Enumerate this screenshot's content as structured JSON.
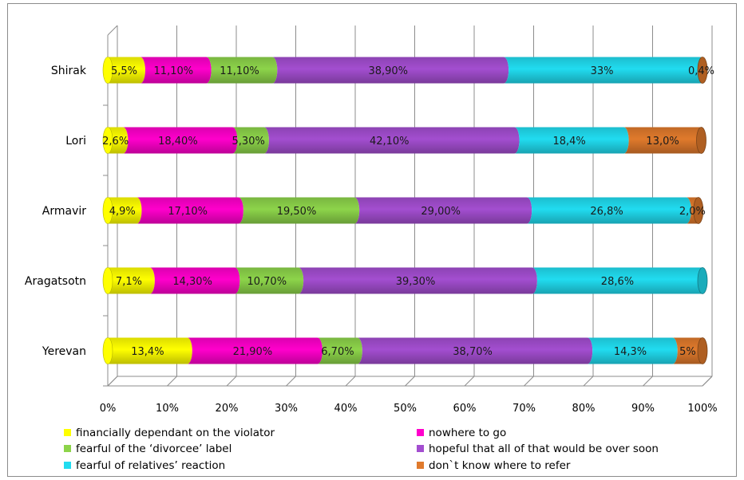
{
  "chart_data": {
    "type": "bar",
    "orientation": "horizontal",
    "stacked": true,
    "percent": true,
    "categories": [
      "Yerevan",
      "Aragatsotn",
      "Armavir",
      "Lori",
      "Shirak"
    ],
    "xlim": [
      0,
      100
    ],
    "xticks": [
      "0%",
      "10%",
      "20%",
      "30%",
      "40%",
      "50%",
      "60%",
      "70%",
      "80%",
      "90%",
      "100%"
    ],
    "grid": true,
    "legend_position": "bottom",
    "series": [
      {
        "name": "financially dependant on the violator",
        "color": "#ffff00",
        "values": [
          13.4,
          7.1,
          4.9,
          2.6,
          5.5
        ],
        "labels": [
          "13,4%",
          "7,1%",
          "4,9%",
          "2,6%",
          "5,5%"
        ]
      },
      {
        "name": "nowhere to go",
        "color": "#ff00cc",
        "values": [
          21.9,
          14.3,
          17.1,
          18.4,
          11.1
        ],
        "labels": [
          "21,90%",
          "14,30%",
          "17,10%",
          "18,40%",
          "11,10%"
        ]
      },
      {
        "name": "fearful of the ‘divorcee’ label",
        "color": "#8dd44a",
        "values": [
          6.7,
          10.7,
          19.5,
          5.3,
          11.1
        ],
        "labels": [
          "6,70%",
          "10,70%",
          "19,50%",
          "5,30%",
          "11,10%"
        ]
      },
      {
        "name": "hopeful that all of that would be over soon",
        "color": "#a34ed0",
        "values": [
          38.7,
          39.3,
          29.0,
          42.1,
          38.9
        ],
        "labels": [
          "38,70%",
          "39,30%",
          "29,00%",
          "42,10%",
          "38,90%"
        ]
      },
      {
        "name": "fearful of relatives’ reaction",
        "color": "#21dcf0",
        "values": [
          14.3,
          28.6,
          26.8,
          18.4,
          33.0
        ],
        "labels": [
          "14,3%",
          "28,6%",
          "26,8%",
          "18,4%",
          "33%"
        ]
      },
      {
        "name": "don`t know where to refer",
        "color": "#e07a2c",
        "values": [
          5.0,
          0.0,
          2.0,
          13.0,
          0.4
        ],
        "labels": [
          "5%",
          "",
          "2,0%",
          "13,0%",
          "0,4%"
        ]
      }
    ]
  }
}
